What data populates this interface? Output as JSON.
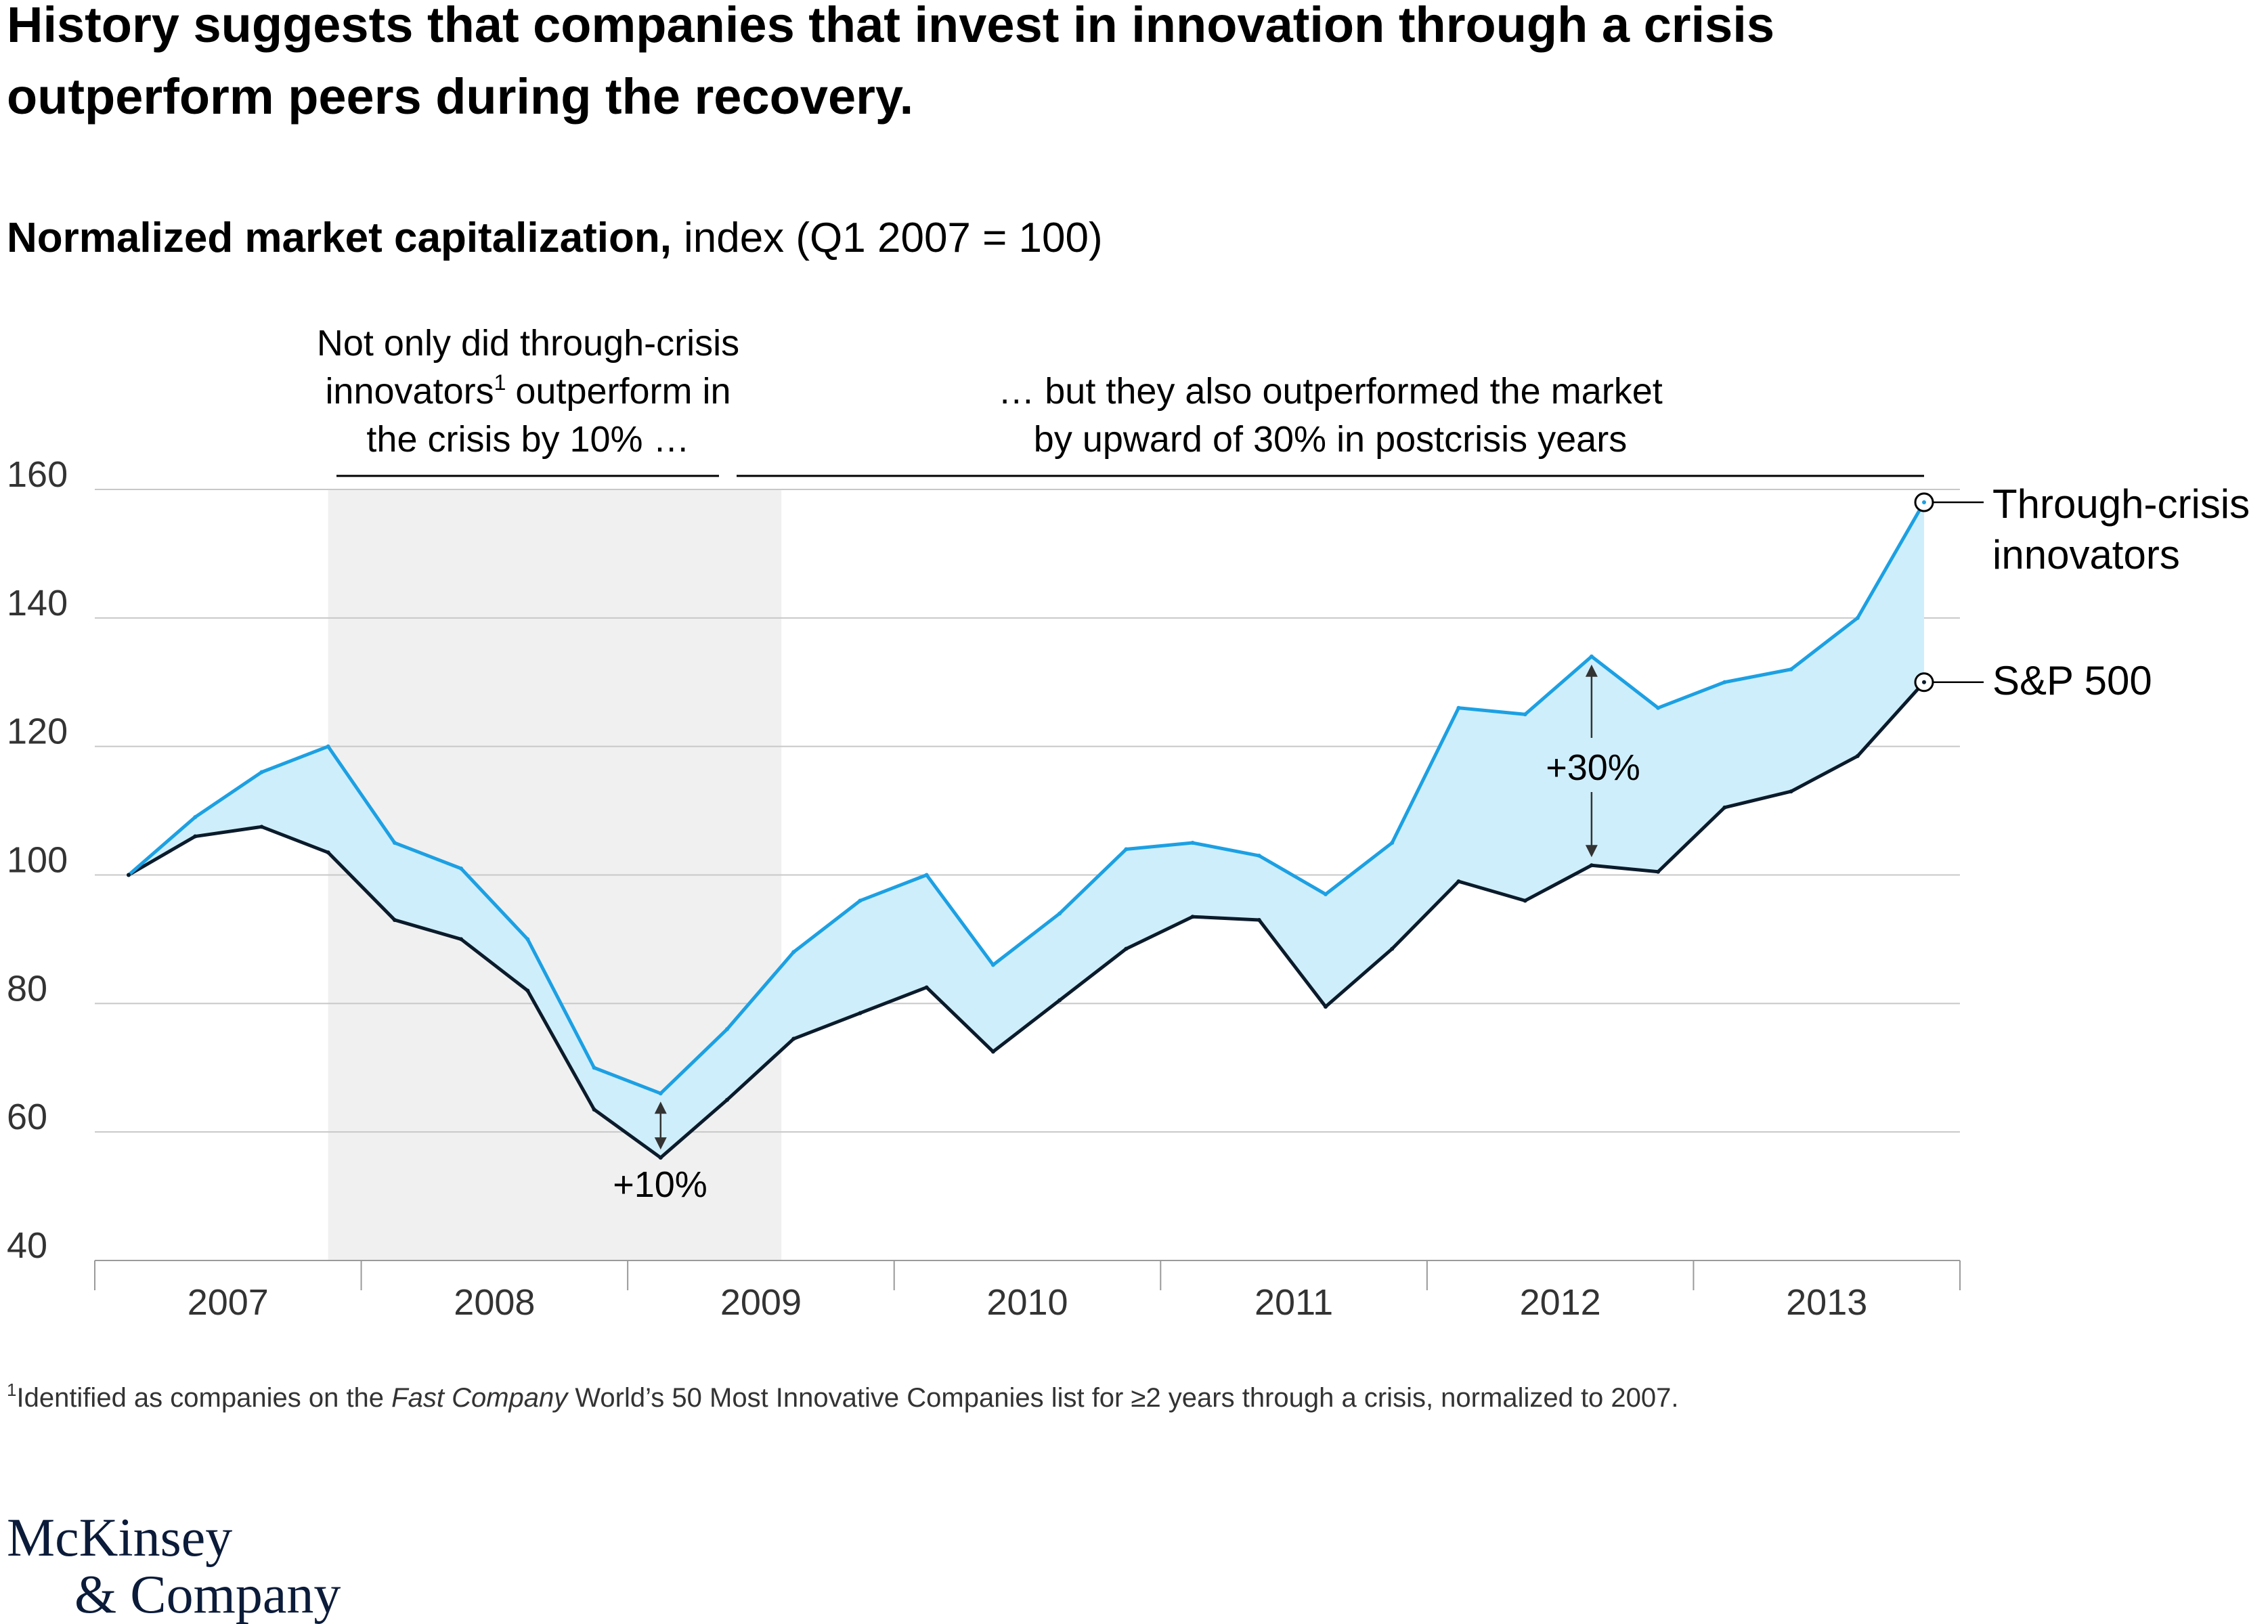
{
  "title": "History suggests that companies that invest in innovation through a crisis outperform peers during the recovery.",
  "title_lines": [
    "History suggests that companies that invest in innovation through a crisis",
    "outperform peers during the recovery."
  ],
  "subtitle": {
    "bold": "Normalized market capitalization,",
    "regular": "index (Q1 2007 = 100)"
  },
  "annotations": {
    "crisis": {
      "lines": [
        "Not only did through-crisis",
        "innovators",
        "outperform in",
        "the crisis by 10% …"
      ],
      "sup": "1"
    },
    "postcrisis": {
      "lines": [
        "… but they also outperformed the market",
        "by upward of 30% in postcrisis years"
      ]
    },
    "gap_crisis": "+10%",
    "gap_postcrisis": "+30%"
  },
  "colors": {
    "innovators": "#1ca0e3",
    "sp500": "#0b1b2b",
    "fill": "#cfeefb",
    "crisis_band": "#f0f0f0",
    "grid": "#c8c8c8"
  },
  "chart_data": {
    "type": "line",
    "title": "Normalized market capitalization, index (Q1 2007 = 100)",
    "xlabel": "",
    "ylabel": "",
    "ylim": [
      40,
      160
    ],
    "yticks": [
      40,
      60,
      80,
      100,
      120,
      140,
      160
    ],
    "year_labels": [
      "2007",
      "2008",
      "2009",
      "2010",
      "2011",
      "2012",
      "2013"
    ],
    "x": [
      "Q1 2007",
      "Q2 2007",
      "Q3 2007",
      "Q4 2007",
      "Q1 2008",
      "Q2 2008",
      "Q3 2008",
      "Q4 2008",
      "Q1 2009",
      "Q2 2009",
      "Q3 2009",
      "Q4 2009",
      "Q1 2010",
      "Q2 2010",
      "Q3 2010",
      "Q4 2010",
      "Q1 2011",
      "Q2 2011",
      "Q3 2011",
      "Q4 2011",
      "Q1 2012",
      "Q2 2012",
      "Q3 2012",
      "Q4 2012",
      "Q1 2013",
      "Q2 2013",
      "Q3 2013",
      "Q4 2013"
    ],
    "crisis_period": [
      "Q4 2007",
      "Q3 2009"
    ],
    "series": [
      {
        "name": "Through-crisis innovators",
        "label_lines": [
          "Through-crisis",
          "innovators"
        ],
        "values": [
          100,
          109,
          116,
          120,
          105,
          101,
          90,
          70,
          66,
          76,
          88,
          96,
          100,
          86,
          94,
          104,
          105,
          103,
          97,
          105,
          126,
          125,
          134,
          126,
          130,
          132,
          140,
          158
        ]
      },
      {
        "name": "S&P 500",
        "label_lines": [
          "S&P 500"
        ],
        "values": [
          100,
          106,
          107.5,
          103.5,
          93,
          90,
          82,
          63.5,
          56,
          65,
          74.5,
          78.5,
          82.5,
          72.5,
          80.5,
          88.5,
          93.5,
          93,
          79.5,
          88.5,
          99,
          96,
          101.5,
          100.5,
          110.5,
          113,
          118.5,
          130
        ]
      }
    ],
    "gap_markers": [
      {
        "x": "Q1 2009",
        "label": "+10%"
      },
      {
        "x": "Q3 2012",
        "label": "+30%"
      }
    ]
  },
  "footnote": {
    "sup": "1",
    "before": "Identified as companies on the ",
    "italic": "Fast Company",
    "after": " World’s 50 Most Innovative Companies list for ≥2 years through a crisis, normalized to 2007."
  },
  "logo": [
    "McKinsey",
    "& Company"
  ]
}
